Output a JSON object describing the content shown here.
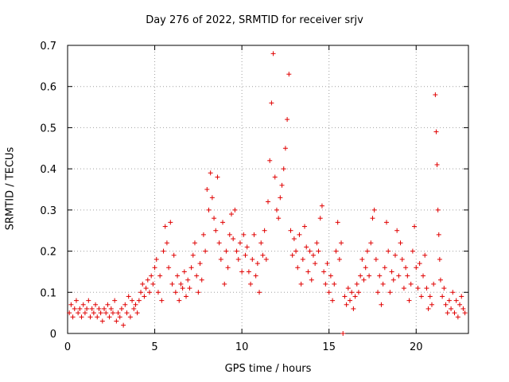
{
  "chart_data": {
    "type": "scatter",
    "title": "Day 276 of 2022, SRMTID for receiver srjv",
    "xlabel": "GPS time / hours",
    "ylabel": "SRMTID / TECUs",
    "xlim": [
      0,
      23.0
    ],
    "ylim": [
      0,
      0.7
    ],
    "xticks": [
      0,
      5,
      10,
      15,
      20
    ],
    "yticks": [
      0,
      0.1,
      0.2,
      0.3,
      0.4,
      0.5,
      0.6,
      0.7
    ],
    "grid": true,
    "marker": "plus",
    "color": "#e00000",
    "series": [
      {
        "name": "SRMTID",
        "points": [
          [
            0.1,
            0.05
          ],
          [
            0.2,
            0.07
          ],
          [
            0.3,
            0.04
          ],
          [
            0.4,
            0.06
          ],
          [
            0.5,
            0.08
          ],
          [
            0.6,
            0.05
          ],
          [
            0.7,
            0.06
          ],
          [
            0.8,
            0.04
          ],
          [
            0.9,
            0.07
          ],
          [
            1.0,
            0.05
          ],
          [
            1.1,
            0.06
          ],
          [
            1.2,
            0.08
          ],
          [
            1.3,
            0.04
          ],
          [
            1.4,
            0.06
          ],
          [
            1.5,
            0.05
          ],
          [
            1.6,
            0.07
          ],
          [
            1.7,
            0.04
          ],
          [
            1.8,
            0.06
          ],
          [
            1.9,
            0.05
          ],
          [
            2.0,
            0.03
          ],
          [
            2.1,
            0.06
          ],
          [
            2.2,
            0.05
          ],
          [
            2.3,
            0.07
          ],
          [
            2.4,
            0.04
          ],
          [
            2.5,
            0.06
          ],
          [
            2.6,
            0.05
          ],
          [
            2.7,
            0.08
          ],
          [
            2.8,
            0.03
          ],
          [
            2.9,
            0.05
          ],
          [
            3.0,
            0.04
          ],
          [
            3.1,
            0.06
          ],
          [
            3.2,
            0.02
          ],
          [
            3.3,
            0.07
          ],
          [
            3.4,
            0.05
          ],
          [
            3.5,
            0.09
          ],
          [
            3.6,
            0.04
          ],
          [
            3.7,
            0.08
          ],
          [
            3.8,
            0.06
          ],
          [
            3.9,
            0.07
          ],
          [
            4.0,
            0.05
          ],
          [
            4.1,
            0.08
          ],
          [
            4.2,
            0.1
          ],
          [
            4.3,
            0.12
          ],
          [
            4.4,
            0.09
          ],
          [
            4.5,
            0.11
          ],
          [
            4.6,
            0.13
          ],
          [
            4.7,
            0.1
          ],
          [
            4.8,
            0.14
          ],
          [
            4.9,
            0.12
          ],
          [
            5.0,
            0.16
          ],
          [
            5.1,
            0.18
          ],
          [
            5.2,
            0.1
          ],
          [
            5.3,
            0.14
          ],
          [
            5.4,
            0.08
          ],
          [
            5.5,
            0.2
          ],
          [
            5.6,
            0.26
          ],
          [
            5.7,
            0.22
          ],
          [
            5.8,
            0.16
          ],
          [
            5.9,
            0.27
          ],
          [
            6.0,
            0.12
          ],
          [
            6.1,
            0.19
          ],
          [
            6.2,
            0.1
          ],
          [
            6.3,
            0.14
          ],
          [
            6.4,
            0.08
          ],
          [
            6.5,
            0.12
          ],
          [
            6.6,
            0.11
          ],
          [
            6.7,
            0.15
          ],
          [
            6.8,
            0.09
          ],
          [
            6.9,
            0.13
          ],
          [
            7.0,
            0.11
          ],
          [
            7.1,
            0.16
          ],
          [
            7.2,
            0.19
          ],
          [
            7.3,
            0.22
          ],
          [
            7.4,
            0.14
          ],
          [
            7.5,
            0.1
          ],
          [
            7.6,
            0.17
          ],
          [
            7.7,
            0.13
          ],
          [
            7.8,
            0.24
          ],
          [
            7.9,
            0.2
          ],
          [
            8.0,
            0.35
          ],
          [
            8.1,
            0.3
          ],
          [
            8.2,
            0.39
          ],
          [
            8.3,
            0.33
          ],
          [
            8.4,
            0.28
          ],
          [
            8.5,
            0.25
          ],
          [
            8.6,
            0.38
          ],
          [
            8.7,
            0.22
          ],
          [
            8.8,
            0.18
          ],
          [
            8.9,
            0.27
          ],
          [
            9.0,
            0.12
          ],
          [
            9.1,
            0.2
          ],
          [
            9.2,
            0.16
          ],
          [
            9.3,
            0.24
          ],
          [
            9.4,
            0.29
          ],
          [
            9.5,
            0.23
          ],
          [
            9.6,
            0.3
          ],
          [
            9.7,
            0.2
          ],
          [
            9.8,
            0.18
          ],
          [
            9.9,
            0.22
          ],
          [
            10.0,
            0.15
          ],
          [
            10.1,
            0.24
          ],
          [
            10.2,
            0.19
          ],
          [
            10.3,
            0.21
          ],
          [
            10.4,
            0.15
          ],
          [
            10.5,
            0.12
          ],
          [
            10.6,
            0.18
          ],
          [
            10.7,
            0.24
          ],
          [
            10.8,
            0.14
          ],
          [
            10.9,
            0.17
          ],
          [
            11.0,
            0.1
          ],
          [
            11.1,
            0.22
          ],
          [
            11.2,
            0.19
          ],
          [
            11.3,
            0.25
          ],
          [
            11.4,
            0.18
          ],
          [
            11.5,
            0.32
          ],
          [
            11.6,
            0.42
          ],
          [
            11.7,
            0.56
          ],
          [
            11.8,
            0.68
          ],
          [
            11.9,
            0.38
          ],
          [
            12.0,
            0.3
          ],
          [
            12.1,
            0.28
          ],
          [
            12.2,
            0.33
          ],
          [
            12.3,
            0.36
          ],
          [
            12.4,
            0.4
          ],
          [
            12.5,
            0.45
          ],
          [
            12.6,
            0.52
          ],
          [
            12.7,
            0.63
          ],
          [
            12.8,
            0.25
          ],
          [
            12.9,
            0.19
          ],
          [
            13.0,
            0.23
          ],
          [
            13.1,
            0.2
          ],
          [
            13.2,
            0.16
          ],
          [
            13.3,
            0.24
          ],
          [
            13.4,
            0.12
          ],
          [
            13.5,
            0.18
          ],
          [
            13.6,
            0.26
          ],
          [
            13.7,
            0.21
          ],
          [
            13.8,
            0.15
          ],
          [
            13.9,
            0.2
          ],
          [
            14.0,
            0.13
          ],
          [
            14.1,
            0.19
          ],
          [
            14.2,
            0.17
          ],
          [
            14.3,
            0.22
          ],
          [
            14.4,
            0.2
          ],
          [
            14.5,
            0.28
          ],
          [
            14.6,
            0.31
          ],
          [
            14.7,
            0.15
          ],
          [
            14.8,
            0.12
          ],
          [
            14.9,
            0.17
          ],
          [
            15.0,
            0.1
          ],
          [
            15.1,
            0.14
          ],
          [
            15.2,
            0.08
          ],
          [
            15.3,
            0.12
          ],
          [
            15.4,
            0.2
          ],
          [
            15.5,
            0.27
          ],
          [
            15.6,
            0.18
          ],
          [
            15.7,
            0.22
          ],
          [
            15.8,
            0.0
          ],
          [
            15.9,
            0.09
          ],
          [
            16.0,
            0.07
          ],
          [
            16.1,
            0.11
          ],
          [
            16.2,
            0.08
          ],
          [
            16.3,
            0.1
          ],
          [
            16.4,
            0.06
          ],
          [
            16.5,
            0.09
          ],
          [
            16.6,
            0.12
          ],
          [
            16.7,
            0.1
          ],
          [
            16.8,
            0.14
          ],
          [
            16.9,
            0.18
          ],
          [
            17.0,
            0.13
          ],
          [
            17.1,
            0.16
          ],
          [
            17.2,
            0.2
          ],
          [
            17.3,
            0.14
          ],
          [
            17.4,
            0.22
          ],
          [
            17.5,
            0.28
          ],
          [
            17.6,
            0.3
          ],
          [
            17.7,
            0.18
          ],
          [
            17.8,
            0.1
          ],
          [
            17.9,
            0.14
          ],
          [
            18.0,
            0.07
          ],
          [
            18.1,
            0.12
          ],
          [
            18.2,
            0.16
          ],
          [
            18.3,
            0.27
          ],
          [
            18.4,
            0.2
          ],
          [
            18.5,
            0.1
          ],
          [
            18.6,
            0.15
          ],
          [
            18.7,
            0.13
          ],
          [
            18.8,
            0.19
          ],
          [
            18.9,
            0.25
          ],
          [
            19.0,
            0.14
          ],
          [
            19.1,
            0.22
          ],
          [
            19.2,
            0.18
          ],
          [
            19.3,
            0.11
          ],
          [
            19.4,
            0.16
          ],
          [
            19.5,
            0.14
          ],
          [
            19.6,
            0.08
          ],
          [
            19.7,
            0.12
          ],
          [
            19.8,
            0.2
          ],
          [
            19.9,
            0.26
          ],
          [
            20.0,
            0.16
          ],
          [
            20.1,
            0.11
          ],
          [
            20.2,
            0.17
          ],
          [
            20.3,
            0.09
          ],
          [
            20.4,
            0.14
          ],
          [
            20.5,
            0.19
          ],
          [
            20.6,
            0.11
          ],
          [
            20.7,
            0.06
          ],
          [
            20.8,
            0.09
          ],
          [
            20.9,
            0.07
          ],
          [
            21.0,
            0.12
          ],
          [
            21.1,
            0.58
          ],
          [
            21.15,
            0.49
          ],
          [
            21.2,
            0.41
          ],
          [
            21.25,
            0.3
          ],
          [
            21.3,
            0.24
          ],
          [
            21.35,
            0.18
          ],
          [
            21.4,
            0.13
          ],
          [
            21.5,
            0.09
          ],
          [
            21.6,
            0.11
          ],
          [
            21.7,
            0.07
          ],
          [
            21.8,
            0.05
          ],
          [
            21.9,
            0.08
          ],
          [
            22.0,
            0.06
          ],
          [
            22.1,
            0.1
          ],
          [
            22.2,
            0.05
          ],
          [
            22.3,
            0.08
          ],
          [
            22.4,
            0.04
          ],
          [
            22.5,
            0.07
          ],
          [
            22.6,
            0.09
          ],
          [
            22.7,
            0.06
          ],
          [
            22.8,
            0.05
          ]
        ]
      }
    ]
  }
}
